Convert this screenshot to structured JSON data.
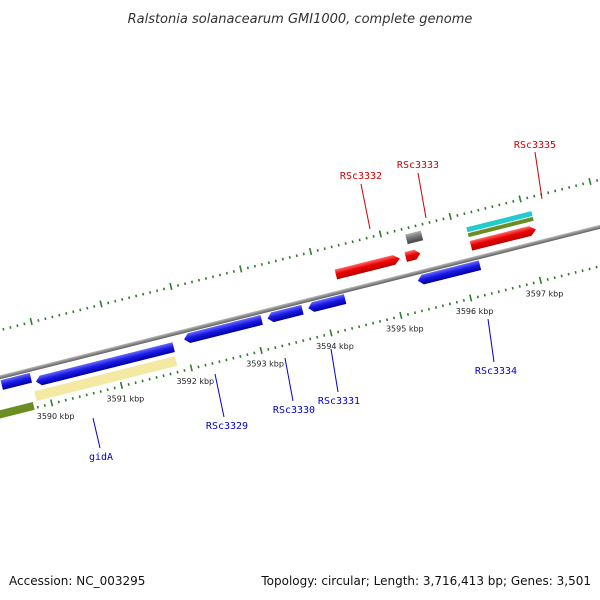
{
  "title": "Ralstonia solanacearum GMI1000, complete genome",
  "footer": {
    "accession": "Accession: NC_003295",
    "summary": "Topology: circular; Length: 3,716,413 bp; Genes: 3,501"
  },
  "colors": {
    "backbone": "#8a8a8a",
    "plus_label": "#cc0000",
    "minus_label": "#0000cc",
    "ruler": "#2e7d2e",
    "gene_red": "#ee0000",
    "gene_blue": "#1a1ae6",
    "gene_grey": "#707070",
    "feature_yellow": "#f3e9a3",
    "feature_olive": "#6b8e23",
    "feature_cyan": "#22cccc"
  },
  "kbp_ticks": [
    {
      "label": "3590 kbp",
      "pos": 3590
    },
    {
      "label": "3591 kbp",
      "pos": 3591
    },
    {
      "label": "3592 kbp",
      "pos": 3592
    },
    {
      "label": "3593 kbp",
      "pos": 3593
    },
    {
      "label": "3594 kbp",
      "pos": 3594
    },
    {
      "label": "3595 kbp",
      "pos": 3595
    },
    {
      "label": "3596 kbp",
      "pos": 3596
    },
    {
      "label": "3597 kbp",
      "pos": 3597
    }
  ],
  "gene_labels": [
    {
      "name": "RSc3332",
      "strand": "+"
    },
    {
      "name": "RSc3333",
      "strand": "+"
    },
    {
      "name": "RSc3335",
      "strand": "+"
    },
    {
      "name": "gidA",
      "strand": "-"
    },
    {
      "name": "RSc3329",
      "strand": "-"
    },
    {
      "name": "RSc3330",
      "strand": "-"
    },
    {
      "name": "RSc3331",
      "strand": "-"
    },
    {
      "name": "RSc3334",
      "strand": "-"
    }
  ]
}
